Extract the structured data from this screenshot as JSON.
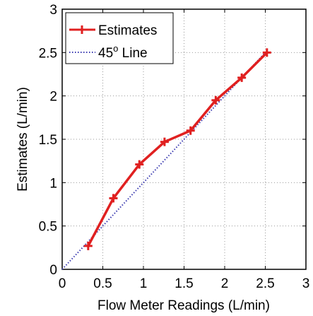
{
  "chart_data": {
    "type": "line",
    "xlabel": "Flow Meter Readings (L/min)",
    "ylabel": "Estimates (L/min)",
    "xlim": [
      0,
      3
    ],
    "ylim": [
      0,
      3
    ],
    "x_ticks": [
      0,
      0.5,
      1,
      1.5,
      2,
      2.5,
      3
    ],
    "y_ticks": [
      0,
      0.5,
      1,
      1.5,
      2,
      2.5,
      3
    ],
    "x_tick_labels": [
      "0",
      "0.5",
      "1",
      "1.5",
      "2",
      "2.5",
      "3"
    ],
    "y_tick_labels": [
      "0",
      "0.5",
      "1",
      "1.5",
      "2",
      "2.5",
      "3"
    ],
    "grid": true,
    "legend_position": "top-left",
    "series": [
      {
        "name": "Estimates",
        "color": "#e02020",
        "style": "solid",
        "marker": "plus",
        "x": [
          0.32,
          0.63,
          0.95,
          1.26,
          1.58,
          1.89,
          2.21,
          2.52
        ],
        "y": [
          0.27,
          0.82,
          1.21,
          1.47,
          1.6,
          1.95,
          2.21,
          2.5
        ]
      },
      {
        "name": "45° Line",
        "color": "#3a3ab0",
        "style": "dotted",
        "marker": "none",
        "x": [
          0,
          2.52
        ],
        "y": [
          0,
          2.52
        ]
      }
    ],
    "legend": {
      "entries": [
        {
          "label": "Estimates",
          "series_index": 0
        },
        {
          "label_base": "45",
          "label_sup": "o",
          "label_tail": " Line",
          "series_index": 1
        }
      ]
    }
  }
}
